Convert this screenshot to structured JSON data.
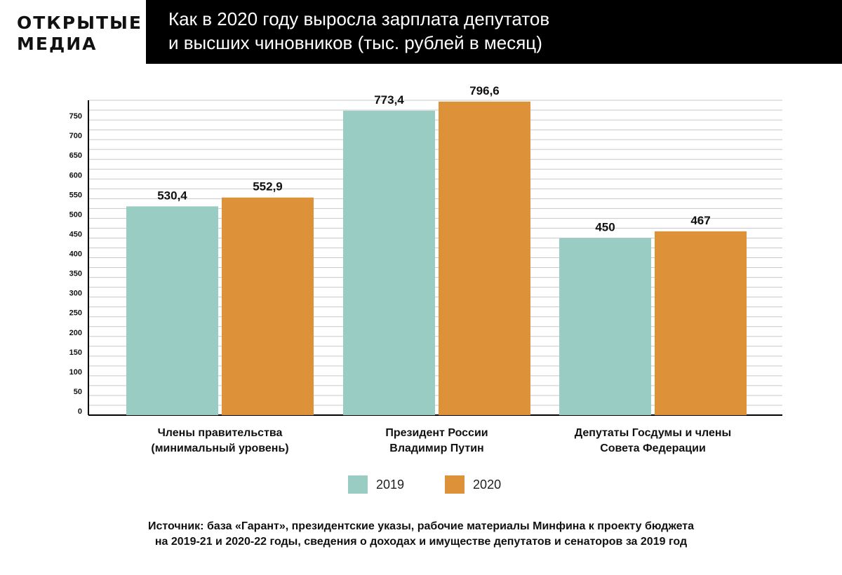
{
  "brand": {
    "line1": "ОТКРЫТЫЕ",
    "line2": "МЕДИА"
  },
  "header": {
    "title_line1": "Как в 2020 году выросла зарплата депутатов",
    "title_line2": "и высших чиновников (тыс. рублей в месяц)"
  },
  "chart_data": {
    "type": "bar",
    "title": "Как в 2020 году выросла зарплата депутатов и высших чиновников (тыс. рублей в месяц)",
    "categories": [
      [
        "Члены правительства",
        "(минимальный уровень)"
      ],
      [
        "Президент России",
        "Владимир Путин"
      ],
      [
        "Депутаты Госдумы и члены",
        "Совета Федерации"
      ]
    ],
    "series": [
      {
        "name": "2019",
        "color": "#99ccc3",
        "values": [
          530.4,
          773.4,
          450
        ],
        "labels": [
          "530,4",
          "773,4",
          "450"
        ]
      },
      {
        "name": "2020",
        "color": "#dd9138",
        "values": [
          552.9,
          796.6,
          467
        ],
        "labels": [
          "552,9",
          "796,6",
          "467"
        ]
      }
    ],
    "yticks": [
      0,
      50,
      100,
      150,
      200,
      250,
      300,
      350,
      400,
      450,
      500,
      550,
      600,
      650,
      700,
      750
    ],
    "ylim": [
      0,
      800
    ],
    "grid": true,
    "legend": "bottom-center"
  },
  "source": {
    "line1": "Источник: база «Гарант», президентские указы, рабочие материалы Минфина к проекту бюджета",
    "line2": "на 2019-21 и 2020-22 годы, сведения о доходах и имуществе депутатов и сенаторов за 2019 год"
  }
}
